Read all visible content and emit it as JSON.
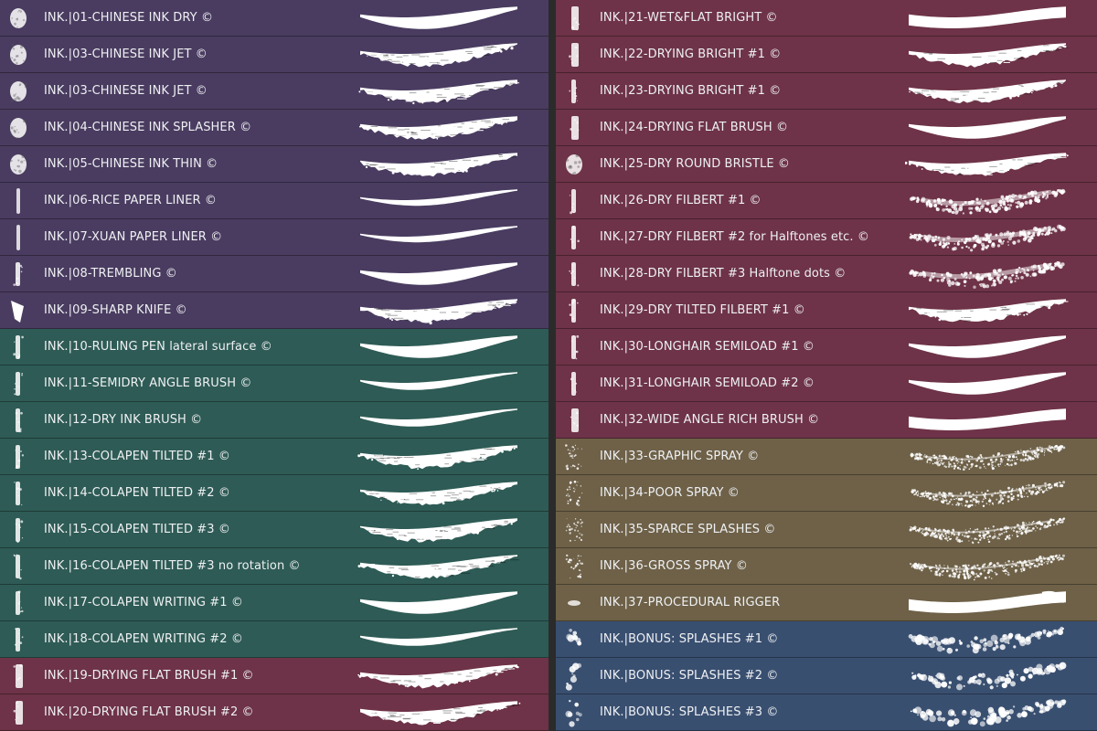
{
  "colors": {
    "purple": "#4a3c60",
    "teal": "#2e5b55",
    "wine": "#6e3348",
    "tan": "#6e6148",
    "blue": "#394f70",
    "text": "#eef0f3",
    "stroke": "#ffffff"
  },
  "left_column": [
    {
      "label": "INK.|01-CHINESE INK DRY ©",
      "group": "purple",
      "thumb_icon": "round-ink-brush-icon",
      "stroke_style": "smooth"
    },
    {
      "label": "INK.|03-CHINESE INK JET ©",
      "group": "purple",
      "thumb_icon": "round-ink-brush-icon",
      "stroke_style": "ragged"
    },
    {
      "label": "INK.|03-CHINESE INK JET ©",
      "group": "purple",
      "thumb_icon": "round-ink-brush-icon",
      "stroke_style": "ragged"
    },
    {
      "label": "INK.|04-CHINESE INK SPLASHER ©",
      "group": "purple",
      "thumb_icon": "round-ink-brush-icon",
      "stroke_style": "ragged"
    },
    {
      "label": "INK.|05-CHINESE INK THIN ©",
      "group": "purple",
      "thumb_icon": "round-ink-brush-icon",
      "stroke_style": "ragged"
    },
    {
      "label": "INK.|06-RICE PAPER LINER ©",
      "group": "purple",
      "thumb_icon": "liner-brush-icon",
      "stroke_style": "thin"
    },
    {
      "label": "INK.|07-XUAN PAPER LINER ©",
      "group": "purple",
      "thumb_icon": "liner-brush-icon",
      "stroke_style": "thin"
    },
    {
      "label": "INK.|08-TREMBLING ©",
      "group": "purple",
      "thumb_icon": "tremble-brush-icon",
      "stroke_style": "smooth"
    },
    {
      "label": "INK.|09-SHARP KNIFE ©",
      "group": "purple",
      "thumb_icon": "knife-brush-icon",
      "stroke_style": "ragged"
    },
    {
      "label": "INK.|10-RULING PEN lateral surface ©",
      "group": "teal",
      "thumb_icon": "ruling-pen-icon",
      "stroke_style": "smooth"
    },
    {
      "label": "INK.|11-SEMIDRY ANGLE BRUSH ©",
      "group": "teal",
      "thumb_icon": "angle-brush-icon",
      "stroke_style": "taper"
    },
    {
      "label": "INK.|12-DRY INK BRUSH ©",
      "group": "teal",
      "thumb_icon": "dry-brush-icon",
      "stroke_style": "taper"
    },
    {
      "label": "INK.|13-COLAPEN TILTED #1 ©",
      "group": "teal",
      "thumb_icon": "colapen-icon",
      "stroke_style": "bristle"
    },
    {
      "label": "INK.|14-COLAPEN TILTED #2 ©",
      "group": "teal",
      "thumb_icon": "colapen-icon",
      "stroke_style": "bristle"
    },
    {
      "label": "INK.|15-COLAPEN TILTED #3 ©",
      "group": "teal",
      "thumb_icon": "colapen-icon",
      "stroke_style": "bristle"
    },
    {
      "label": "INK.|16-COLAPEN TILTED #3 no rotation ©",
      "group": "teal",
      "thumb_icon": "colapen-icon",
      "stroke_style": "bristle"
    },
    {
      "label": "INK.|17-COLAPEN WRITING #1 ©",
      "group": "teal",
      "thumb_icon": "colapen-writing-icon",
      "stroke_style": "smooth"
    },
    {
      "label": "INK.|18-COLAPEN WRITING #2 ©",
      "group": "teal",
      "thumb_icon": "colapen-writing-icon",
      "stroke_style": "taper"
    },
    {
      "label": "INK.|19-DRYING FLAT BRUSH #1 ©",
      "group": "wine",
      "thumb_icon": "flat-brush-icon",
      "stroke_style": "bristle"
    },
    {
      "label": "INK.|20-DRYING FLAT BRUSH #2 ©",
      "group": "wine",
      "thumb_icon": "flat-brush-icon",
      "stroke_style": "bristle"
    }
  ],
  "right_column": [
    {
      "label": "INK.|21-WET&FLAT BRIGHT ©",
      "group": "wine",
      "thumb_icon": "flat-bright-brush-icon",
      "stroke_style": "flat"
    },
    {
      "label": "INK.|22-DRYING BRIGHT #1 ©",
      "group": "wine",
      "thumb_icon": "flat-bright-brush-icon",
      "stroke_style": "bristle"
    },
    {
      "label": "INK.|23-DRYING BRIGHT #1 ©",
      "group": "wine",
      "thumb_icon": "streaky-brush-icon",
      "stroke_style": "bristle"
    },
    {
      "label": "INK.|24-DRYING FLAT BRUSH ©",
      "group": "wine",
      "thumb_icon": "flat-brush-icon",
      "stroke_style": "smooth"
    },
    {
      "label": "INK.|25-DRY ROUND BRISTLE ©",
      "group": "wine",
      "thumb_icon": "round-bristle-icon",
      "stroke_style": "ragged"
    },
    {
      "label": "INK.|26-DRY FILBERT #1 ©",
      "group": "wine",
      "thumb_icon": "filbert-brush-icon",
      "stroke_style": "dots"
    },
    {
      "label": "INK.|27-DRY FILBERT #2 for Halftones etc. ©",
      "group": "wine",
      "thumb_icon": "filbert-brush-icon",
      "stroke_style": "dots"
    },
    {
      "label": "INK.|28-DRY FILBERT #3 Halftone dots ©",
      "group": "wine",
      "thumb_icon": "filbert-brush-icon",
      "stroke_style": "dots"
    },
    {
      "label": "INK.|29-DRY TILTED FILBERT #1 ©",
      "group": "wine",
      "thumb_icon": "filbert-brush-icon",
      "stroke_style": "ragged"
    },
    {
      "label": "INK.|30-LONGHAIR SEMILOAD #1 ©",
      "group": "wine",
      "thumb_icon": "longhair-brush-icon",
      "stroke_style": "smooth"
    },
    {
      "label": "INK.|31-LONGHAIR SEMILOAD #2 ©",
      "group": "wine",
      "thumb_icon": "longhair-brush-icon",
      "stroke_style": "smooth"
    },
    {
      "label": "INK.|32-WIDE ANGLE RICH BRUSH ©",
      "group": "wine",
      "thumb_icon": "wide-angle-brush-icon",
      "stroke_style": "flat"
    },
    {
      "label": "INK.|33-GRAPHIC SPRAY ©",
      "group": "tan",
      "thumb_icon": "spray-icon",
      "stroke_style": "spray"
    },
    {
      "label": "INK.|34-POOR SPRAY ©",
      "group": "tan",
      "thumb_icon": "spray-icon",
      "stroke_style": "spray"
    },
    {
      "label": "INK.|35-SPARCE SPLASHES ©",
      "group": "tan",
      "thumb_icon": "spray-icon",
      "stroke_style": "spray"
    },
    {
      "label": "INK.|36-GROSS SPRAY ©",
      "group": "tan",
      "thumb_icon": "gross-spray-icon",
      "stroke_style": "spray"
    },
    {
      "label": "INK.|37-PROCEDURAL RIGGER",
      "group": "tan",
      "thumb_icon": "rigger-brush-icon",
      "stroke_style": "rigger"
    },
    {
      "label": "INK.|BONUS: SPLASHES #1 ©",
      "group": "blue",
      "thumb_icon": "splash-icon",
      "stroke_style": "splash"
    },
    {
      "label": "INK.|BONUS: SPLASHES #2 ©",
      "group": "blue",
      "thumb_icon": "splash-icon",
      "stroke_style": "splash"
    },
    {
      "label": "INK.|BONUS: SPLASHES #3 ©",
      "group": "blue",
      "thumb_icon": "splash-icon",
      "stroke_style": "splash"
    }
  ]
}
